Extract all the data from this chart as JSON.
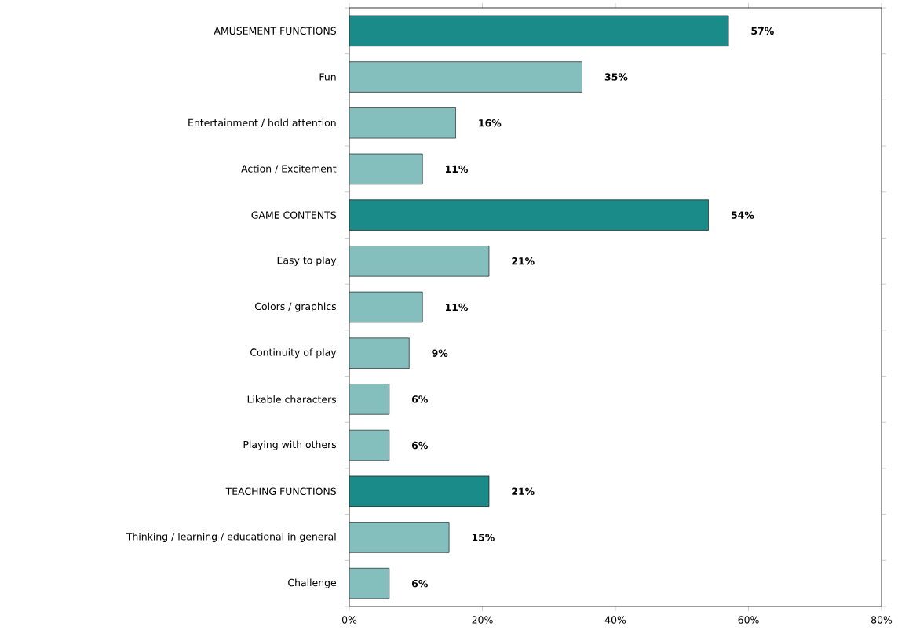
{
  "chart_data": {
    "type": "bar",
    "orientation": "horizontal",
    "categories": [
      "AMUSEMENT FUNCTIONS",
      "Fun",
      "Entertainment / hold attention",
      "Action / Excitement",
      "GAME CONTENTS",
      "Easy to play",
      "Colors / graphics",
      "Continuity of play",
      "Likable characters",
      "Playing with others",
      "TEACHING FUNCTIONS",
      "Thinking / learning / educational in general",
      "Challenge"
    ],
    "values": [
      57,
      35,
      16,
      11,
      54,
      21,
      11,
      9,
      6,
      6,
      21,
      15,
      6
    ],
    "value_labels": [
      "57%",
      "35%",
      "16%",
      "11%",
      "54%",
      "21%",
      "11%",
      "9%",
      "6%",
      "6%",
      "21%",
      "15%",
      "6%"
    ],
    "colors": [
      "#1b8b89",
      "#84bfbe",
      "#84bfbe",
      "#84bfbe",
      "#1b8b89",
      "#84bfbe",
      "#84bfbe",
      "#84bfbe",
      "#84bfbe",
      "#84bfbe",
      "#1b8b89",
      "#84bfbe",
      "#84bfbe"
    ],
    "xlim": [
      0,
      80
    ],
    "xticks": [
      {
        "value": 0,
        "label": "0%"
      },
      {
        "value": 20,
        "label": "20%"
      },
      {
        "value": 40,
        "label": "40%"
      },
      {
        "value": 60,
        "label": "60%"
      },
      {
        "value": 80,
        "label": "80%"
      }
    ],
    "grid": false
  }
}
